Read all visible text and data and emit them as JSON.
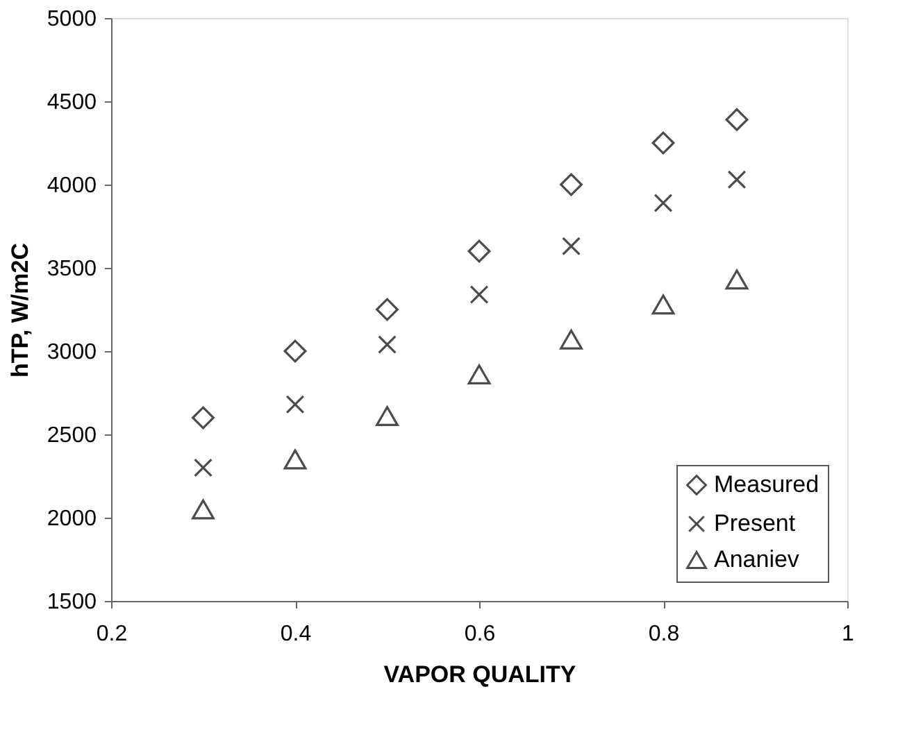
{
  "chart_data": {
    "type": "scatter",
    "xlabel": "VAPOR QUALITY",
    "ylabel": "hTP, W/m2C",
    "x": [
      0.3,
      0.4,
      0.5,
      0.6,
      0.7,
      0.8,
      0.88
    ],
    "series": [
      {
        "name": "Measured",
        "color": "#000000",
        "marker": "diamond",
        "values": [
          2600,
          3000,
          3250,
          3600,
          4000,
          4250,
          4390
        ]
      },
      {
        "name": "Present",
        "color": "#000000",
        "marker": "cross",
        "values": [
          2300,
          2680,
          3040,
          3340,
          3630,
          3890,
          4030
        ]
      },
      {
        "name": "Ananiev",
        "color": "#000000",
        "marker": "triangle",
        "values": [
          2050,
          2350,
          2610,
          2860,
          3070,
          3280,
          3430
        ]
      }
    ],
    "xlim": [
      0.2,
      1
    ],
    "xticks": [
      0.2,
      0.4,
      0.6,
      0.8,
      1
    ],
    "ylim": [
      1500,
      5000
    ],
    "yticks": [
      1500,
      2000,
      2500,
      3000,
      3500,
      4000,
      4500,
      5000
    ],
    "grid": false,
    "legend": "bottom right"
  }
}
